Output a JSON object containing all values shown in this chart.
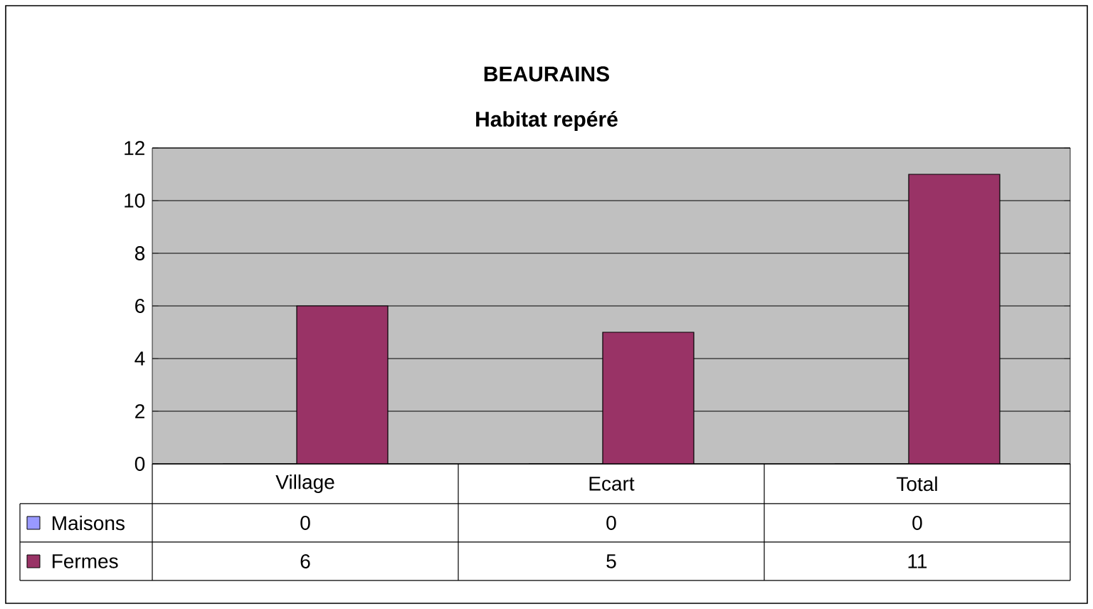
{
  "chart_data": {
    "type": "bar",
    "title": "BEAURAINS",
    "subtitle": "Habitat repéré",
    "categories": [
      "Village",
      "Ecart",
      "Total"
    ],
    "series": [
      {
        "name": "Maisons",
        "color": "#9999ff",
        "values": [
          0,
          0,
          0
        ]
      },
      {
        "name": "Fermes",
        "color": "#993366",
        "values": [
          6,
          5,
          11
        ]
      }
    ],
    "ylim": [
      0,
      12
    ],
    "yticks": [
      0,
      2,
      4,
      6,
      8,
      10,
      12
    ],
    "grid": "y",
    "legend": "bottom left",
    "data_labels": true
  }
}
